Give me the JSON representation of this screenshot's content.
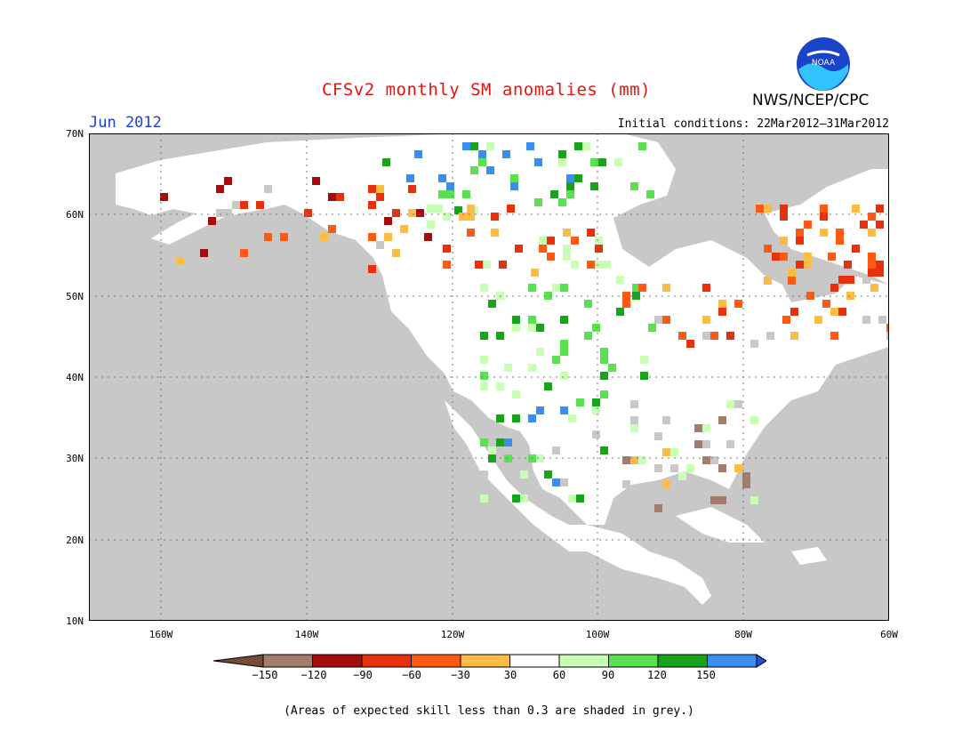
{
  "header": {
    "title": "CFSv2 monthly SM anomalies (mm)",
    "agency": "NWS/NCEP/CPC",
    "logo_text": "NOAA",
    "valid_month": "Jun 2012",
    "initial_conditions": "Initial conditions: 22Mar2012–31Mar2012"
  },
  "map": {
    "lat_labels": [
      "70N",
      "60N",
      "50N",
      "40N",
      "30N",
      "20N",
      "10N"
    ],
    "lon_labels": [
      "160W",
      "140W",
      "120W",
      "100W",
      "80W",
      "60W"
    ],
    "lat_range": [
      10,
      70
    ],
    "lon_range": [
      -170,
      -60
    ],
    "background": "#c8c8c8",
    "land_color": "#ffffff",
    "gridlines": true
  },
  "legend": {
    "labels": [
      "−150",
      "−120",
      "−90",
      "−60",
      "−30",
      "30",
      "60",
      "90",
      "120",
      "150"
    ],
    "colors": [
      "#744c37",
      "#a57b6d",
      "#a50d0d",
      "#e8300d",
      "#ff5a14",
      "#ffbc44",
      "#ffffff",
      "#c7ffb5",
      "#5ae14f",
      "#18a41a",
      "#3a8ef0",
      "#2450d8"
    ]
  },
  "note": "(Areas of expected skill less than 0.3 are shaded in grey.)"
}
